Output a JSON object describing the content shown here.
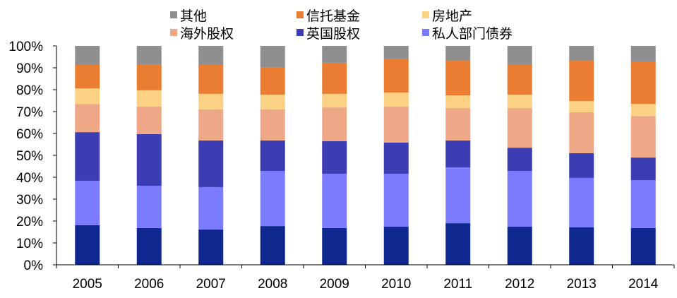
{
  "chart_data": {
    "type": "bar",
    "stacked": true,
    "title": "",
    "xlabel": "",
    "ylabel": "",
    "ylim": [
      0,
      100
    ],
    "yticks": [
      "0%",
      "10%",
      "20%",
      "30%",
      "40%",
      "50%",
      "60%",
      "70%",
      "80%",
      "90%",
      "100%"
    ],
    "categories": [
      "2005",
      "2006",
      "2007",
      "2008",
      "2009",
      "2010",
      "2011",
      "2012",
      "2013",
      "2014"
    ],
    "legend_position": "top",
    "series": [
      {
        "name": "",
        "color": "#0F2890",
        "values": [
          18.1,
          16.8,
          16.1,
          17.7,
          16.8,
          17.4,
          19.0,
          17.4,
          17.1,
          16.8
        ]
      },
      {
        "name": "私人部门债券",
        "color": "#7B7BFF",
        "values": [
          20.3,
          19.3,
          19.4,
          25.2,
          24.8,
          24.2,
          25.5,
          25.5,
          22.6,
          21.9
        ]
      },
      {
        "name": "英国股权",
        "color": "#3C3DB2",
        "values": [
          22.2,
          23.6,
          21.3,
          13.9,
          14.9,
          14.2,
          12.3,
          10.6,
          11.3,
          10.3
        ]
      },
      {
        "name": "海外股权",
        "color": "#EFA887",
        "values": [
          12.9,
          12.6,
          14.2,
          14.2,
          15.4,
          16.5,
          14.8,
          18.1,
          18.7,
          19.0
        ]
      },
      {
        "name": "房地产",
        "color": "#FBD184",
        "values": [
          7.1,
          7.4,
          7.1,
          6.7,
          6.2,
          6.4,
          5.8,
          6.1,
          5.1,
          5.5
        ]
      },
      {
        "name": "信托基金",
        "color": "#EB7D33",
        "values": [
          10.7,
          11.9,
          13.2,
          12.6,
          14.2,
          15.2,
          15.8,
          13.6,
          18.4,
          19.4
        ]
      },
      {
        "name": "其他",
        "color": "#8F8F8F",
        "values": [
          8.7,
          8.4,
          8.7,
          9.7,
          7.7,
          6.1,
          6.8,
          8.7,
          6.8,
          7.1
        ]
      }
    ],
    "legend_order": [
      6,
      5,
      4,
      3,
      2,
      1
    ]
  }
}
